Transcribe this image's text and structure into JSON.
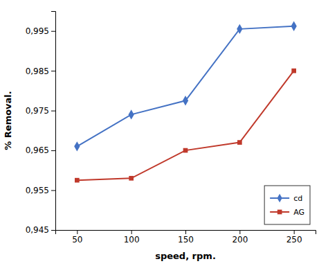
{
  "chart_data": {
    "type": "line",
    "x": [
      50,
      100,
      150,
      200,
      250
    ],
    "series": [
      {
        "name": "cd",
        "color": "#4472C4",
        "marker": "diamond",
        "values": [
          0.966,
          0.974,
          0.9775,
          0.9955,
          0.9962
        ]
      },
      {
        "name": "AG",
        "color": "#C0392B",
        "marker": "square",
        "values": [
          0.9575,
          0.958,
          0.965,
          0.967,
          0.985
        ]
      }
    ],
    "xlabel": "speed, rpm.",
    "ylabel": "% Removal.",
    "xlim": [
      30,
      270
    ],
    "xticks": [
      50,
      100,
      150,
      200,
      250
    ],
    "ylim": [
      0.945,
      1.0
    ],
    "yticks": [
      {
        "value": 0.945,
        "label": "0,945"
      },
      {
        "value": 0.955,
        "label": "0,955"
      },
      {
        "value": 0.965,
        "label": "0,965"
      },
      {
        "value": 0.975,
        "label": "0,975"
      },
      {
        "value": 0.985,
        "label": "0,985"
      },
      {
        "value": 0.995,
        "label": "0,995"
      }
    ],
    "grid": false,
    "legend": "lower right"
  }
}
